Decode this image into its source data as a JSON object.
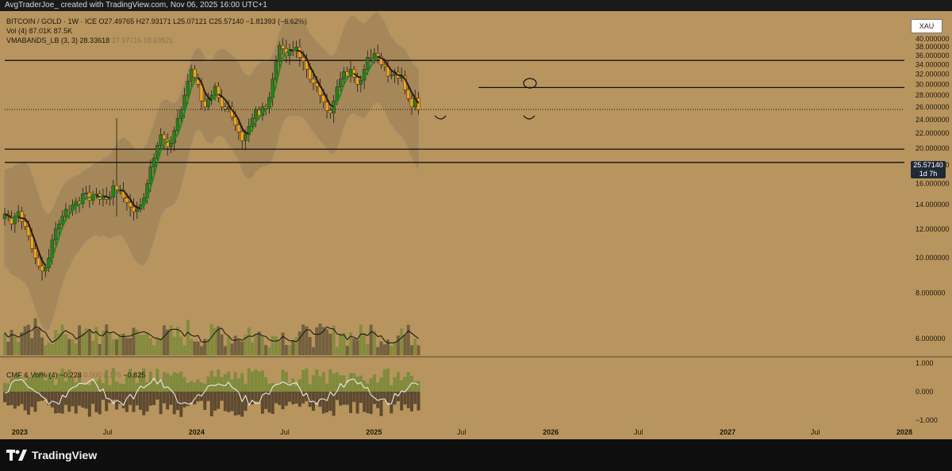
{
  "header": {
    "text": "AvgTraderJoe_ created with TradingView.com, Nov 06, 2025 16:00 UTC+1"
  },
  "legend": {
    "line1": {
      "title": "BITCOIN / GOLD · 1W · ICE",
      "o": "O27.49765",
      "h": "H27.93171",
      "l": "L25.07121",
      "c": "C25.57140",
      "change": "−1.81393 (−6.62%)"
    },
    "line2": {
      "label": "Vol (4)",
      "v1": "87.01K",
      "v2": "87.5K"
    },
    "line3": {
      "label": "VMABANDS_LB (3, 3)",
      "v1": "28.33618",
      "v2": "37.97716",
      "v3": "18.69521"
    }
  },
  "cmf_legend": {
    "label": "CMF & Vol% (4)",
    "v1": "−0.228",
    "v2": "0.000",
    "v3": "0.175",
    "v4": "−0.825"
  },
  "symbol_badge": "XAU",
  "price_tag": {
    "price": "25.57140",
    "countdown": "1d 7h"
  },
  "footer": {
    "brand": "TradingView"
  },
  "colors": {
    "background": "#b8955e",
    "bull": "#2e7d1e",
    "bear": "#f2a21b",
    "band": "#a08358",
    "band_line": "#9d8c72",
    "ma_line": "#1c8a1c",
    "volume": "#6b5a3c",
    "level_line": "#111111"
  },
  "chart_data": {
    "type": "candlestick",
    "price_axis": {
      "scale": "log",
      "ticks": [
        "40.000000",
        "38.000000",
        "36.000000",
        "34.000000",
        "32.000000",
        "30.000000",
        "28.000000",
        "26.000000",
        "24.000000",
        "22.000000",
        "20.000000",
        "18.000000",
        "16.000000",
        "14.000000",
        "12.000000",
        "10.000000",
        "8.000000",
        "6.000000"
      ]
    },
    "time_axis": {
      "start": "2022-12-01",
      "end": "2028-01-01",
      "labels": [
        {
          "date": "2023-01-01",
          "text": "2023",
          "bold": true
        },
        {
          "date": "2023-07-01",
          "text": "Jul",
          "bold": false
        },
        {
          "date": "2024-01-01",
          "text": "2024",
          "bold": true
        },
        {
          "date": "2024-07-01",
          "text": "Jul",
          "bold": false
        },
        {
          "date": "2025-01-01",
          "text": "2025",
          "bold": true
        },
        {
          "date": "2025-07-01",
          "text": "Jul",
          "bold": false
        },
        {
          "date": "2026-01-01",
          "text": "2026",
          "bold": true
        },
        {
          "date": "2026-07-01",
          "text": "Jul",
          "bold": false
        },
        {
          "date": "2027-01-01",
          "text": "2027",
          "bold": true
        },
        {
          "date": "2027-07-01",
          "text": "Jul",
          "bold": false
        },
        {
          "date": "2028-01-01",
          "text": "2028",
          "bold": true
        }
      ]
    },
    "cmf_axis": {
      "ticks": [
        "1.000",
        "0.000",
        "−1.000"
      ]
    },
    "horizontal_levels": [
      {
        "value": 34.9,
        "from": "2022-12-01"
      },
      {
        "value": 29.4,
        "from": "2025-08-05"
      },
      {
        "value": 25.57,
        "from": "2022-12-01",
        "style": "dotted"
      },
      {
        "value": 19.9,
        "from": "2022-12-01"
      },
      {
        "value": 18.3,
        "from": "2022-12-01"
      }
    ],
    "weekly_closes": [
      13.2,
      13.0,
      12.4,
      13.0,
      13.4,
      12.6,
      12.2,
      11.5,
      10.6,
      10.0,
      9.5,
      9.2,
      9.4,
      10.0,
      11.2,
      12.0,
      12.4,
      13.0,
      13.6,
      13.5,
      14.0,
      14.3,
      14.1,
      15.0,
      15.1,
      14.4,
      14.9,
      15.0,
      14.5,
      14.8,
      14.5,
      14.7,
      15.8,
      15.4,
      15.4,
      14.6,
      14.2,
      13.8,
      13.4,
      13.6,
      14.0,
      14.6,
      16.0,
      17.8,
      18.8,
      20.4,
      21.8,
      21.2,
      20.2,
      20.7,
      22.4,
      24.2,
      25.5,
      28.0,
      30.6,
      33.0,
      31.4,
      30.0,
      27.0,
      26.0,
      27.4,
      28.0,
      29.6,
      27.6,
      26.0,
      25.7,
      26.0,
      24.4,
      23.2,
      22.2,
      21.0,
      21.8,
      23.0,
      24.2,
      25.5,
      24.6,
      26.0,
      25.8,
      27.6,
      31.0,
      34.6,
      38.4,
      37.6,
      36.0,
      37.4,
      37.2,
      38.0,
      35.6,
      34.8,
      33.0,
      31.0,
      30.2,
      29.6,
      28.0,
      26.8,
      25.4,
      25.0,
      27.0,
      29.5,
      31.0,
      32.5,
      31.6,
      33.0,
      31.4,
      30.0,
      30.8,
      33.0,
      35.6,
      35.4,
      36.5,
      35.8,
      34.0,
      33.6,
      31.6,
      31.8,
      32.4,
      31.2,
      31.6,
      29.0,
      27.4,
      26.0,
      27.5,
      25.57
    ],
    "annotations": [
      "circle at ~29.4 near current price",
      "arc under lows in early 2025"
    ]
  }
}
